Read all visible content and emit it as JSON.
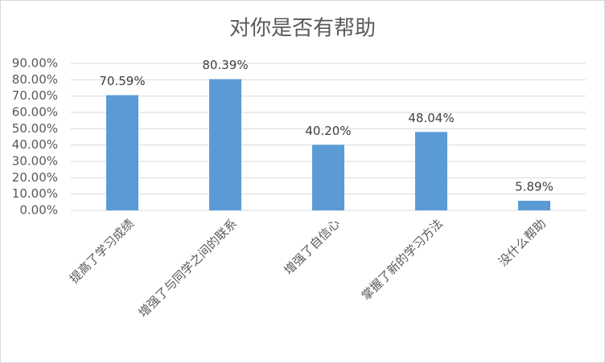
{
  "chart_data": {
    "type": "bar",
    "title": "对你是否有帮助",
    "categories": [
      "提高了学习成绩",
      "增强了与同学之间的联系",
      "增强了自信心",
      "掌握了新的学习方法",
      "没什么帮助"
    ],
    "values": [
      70.59,
      80.39,
      40.2,
      48.04,
      5.89
    ],
    "value_labels": [
      "70.59%",
      "80.39%",
      "40.20%",
      "48.04%",
      "5.89%"
    ],
    "color": "#5b9bd5",
    "ylim": [
      0,
      90
    ],
    "yticks": [
      {
        "value": 0,
        "label": "0.00%"
      },
      {
        "value": 10,
        "label": "10.00%"
      },
      {
        "value": 20,
        "label": "20.00%"
      },
      {
        "value": 30,
        "label": "30.00%"
      },
      {
        "value": 40,
        "label": "40.00%"
      },
      {
        "value": 50,
        "label": "50.00%"
      },
      {
        "value": 60,
        "label": "60.00%"
      },
      {
        "value": 70,
        "label": "70.00%"
      },
      {
        "value": 80,
        "label": "80.00%"
      },
      {
        "value": 90,
        "label": "90.00%"
      }
    ],
    "grid": true
  }
}
